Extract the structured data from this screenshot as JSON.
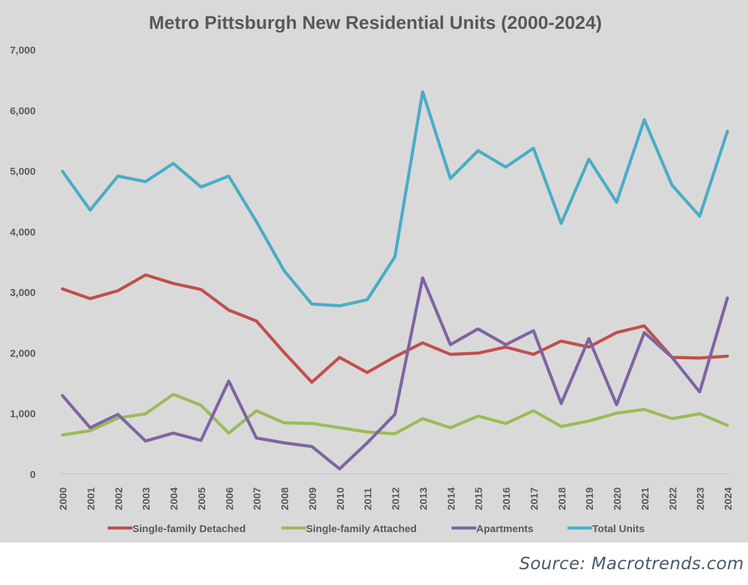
{
  "chart_data": {
    "type": "line",
    "title": "Metro Pittsburgh New Residential Units (2000-2024)",
    "xlabel": "",
    "ylabel": "",
    "ylim": [
      0,
      7000
    ],
    "yticks": [
      "0",
      "1,000",
      "2,000",
      "3,000",
      "4,000",
      "5,000",
      "6,000",
      "7,000"
    ],
    "grid": false,
    "legend_position": "bottom",
    "categories": [
      "2000",
      "2001",
      "2002",
      "2003",
      "2004",
      "2005",
      "2006",
      "2007",
      "2008",
      "2009",
      "2010",
      "2011",
      "2012",
      "2013",
      "2014",
      "2015",
      "2016",
      "2017",
      "2018",
      "2019",
      "2020",
      "2021",
      "2022",
      "2023",
      "2024"
    ],
    "series": [
      {
        "name": "Single-family Detached",
        "color": "#c0504d",
        "values": [
          3050,
          2890,
          3020,
          3280,
          3140,
          3040,
          2700,
          2520,
          2000,
          1510,
          1920,
          1670,
          1930,
          2160,
          1970,
          1990,
          2090,
          1970,
          2190,
          2090,
          2330,
          2440,
          1920,
          1910,
          1940
        ]
      },
      {
        "name": "Single-family Attached",
        "color": "#9bbb59",
        "values": [
          640,
          710,
          920,
          990,
          1310,
          1130,
          670,
          1040,
          840,
          830,
          760,
          690,
          660,
          910,
          760,
          950,
          830,
          1040,
          780,
          870,
          1000,
          1060,
          910,
          990,
          800
        ]
      },
      {
        "name": "Apartments",
        "color": "#8064a2",
        "values": [
          1290,
          760,
          980,
          540,
          670,
          550,
          1530,
          590,
          510,
          450,
          80,
          510,
          980,
          3230,
          2130,
          2390,
          2130,
          2360,
          1160,
          2230,
          1140,
          2330,
          1920,
          1350,
          2900
        ]
      },
      {
        "name": "Total Units",
        "color": "#4bacc6",
        "values": [
          4990,
          4350,
          4910,
          4820,
          5120,
          4730,
          4910,
          4160,
          3350,
          2800,
          2770,
          2870,
          3580,
          6300,
          4870,
          5330,
          5060,
          5370,
          4130,
          5190,
          4480,
          5840,
          4760,
          4250,
          5650
        ]
      }
    ]
  },
  "source": "Source: Macrotrends.com"
}
